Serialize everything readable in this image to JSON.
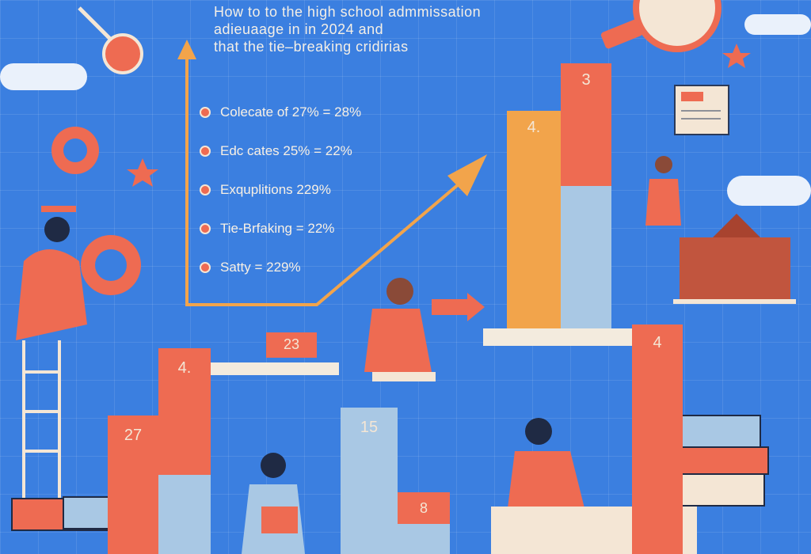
{
  "title": {
    "line1": "How to to the high school admmissation",
    "line2": "adieuaage in in 2024 and",
    "line3": "that the tie–breaking cridirias"
  },
  "legend": [
    {
      "text": "Colecate of 27% = 28%"
    },
    {
      "text": "Edc cates 25% = 22%"
    },
    {
      "text": "Exquplitions 229%"
    },
    {
      "text": "Tie-Brfaking = 22%"
    },
    {
      "text": "Satty = 229%"
    }
  ],
  "bars": {
    "b1": "4.",
    "b2": "27",
    "b3": "23",
    "b4": "15",
    "b5": "8",
    "b6": "4.",
    "b7": "3",
    "b8": "4"
  },
  "colors": {
    "background": "#3b7fe0",
    "accent": "#ee6b52",
    "orange": "#f2a44b",
    "light_blue": "#a9c8e4",
    "cream": "#f4e6d5"
  }
}
